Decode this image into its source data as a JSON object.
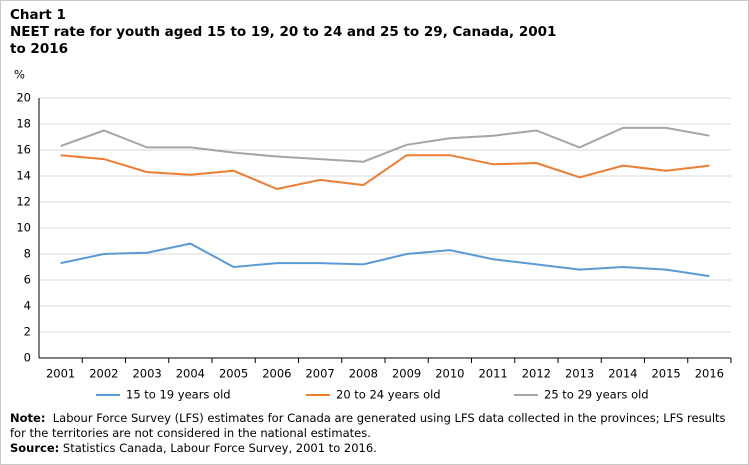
{
  "chart_data": {
    "type": "line",
    "label": "Chart 1",
    "title": "NEET rate for youth aged 15 to 19, 20 to 24 and 25 to 29, Canada, 2001 to 2016",
    "y_label": "%",
    "categories": [
      "2001",
      "2002",
      "2003",
      "2004",
      "2005",
      "2006",
      "2007",
      "2008",
      "2009",
      "2010",
      "2011",
      "2012",
      "2013",
      "2014",
      "2015",
      "2016"
    ],
    "series": [
      {
        "name": "15 to 19 years old",
        "color": "#5b9bd5",
        "values": [
          7.3,
          8.0,
          8.1,
          8.8,
          7.0,
          7.3,
          7.3,
          7.2,
          8.0,
          8.3,
          7.6,
          7.2,
          6.8,
          7.0,
          6.8,
          6.3
        ]
      },
      {
        "name": "20 to 24 years old",
        "color": "#ed7d31",
        "values": [
          15.6,
          15.3,
          14.3,
          14.1,
          14.4,
          13.0,
          13.7,
          13.3,
          15.6,
          15.6,
          14.9,
          15.0,
          13.9,
          14.8,
          14.4,
          14.8
        ]
      },
      {
        "name": "25 to 29 years old",
        "color": "#a5a5a5",
        "values": [
          16.3,
          17.5,
          16.2,
          16.2,
          15.8,
          15.5,
          15.3,
          15.1,
          16.4,
          16.9,
          17.1,
          17.5,
          16.2,
          17.7,
          17.7,
          17.1
        ]
      }
    ],
    "ylim": [
      0,
      20
    ],
    "yticks": [
      0,
      2,
      4,
      6,
      8,
      10,
      12,
      14,
      16,
      18,
      20
    ],
    "grid": true,
    "legend": "bottom",
    "note_label": "Note:",
    "note": "Labour Force Survey (LFS) estimates for Canada are generated using LFS data collected in the provinces; LFS results for the territories are not considered in the national estimates.",
    "source_label": "Source:",
    "source": "Statistics Canada, Labour Force Survey, 2001 to 2016."
  }
}
